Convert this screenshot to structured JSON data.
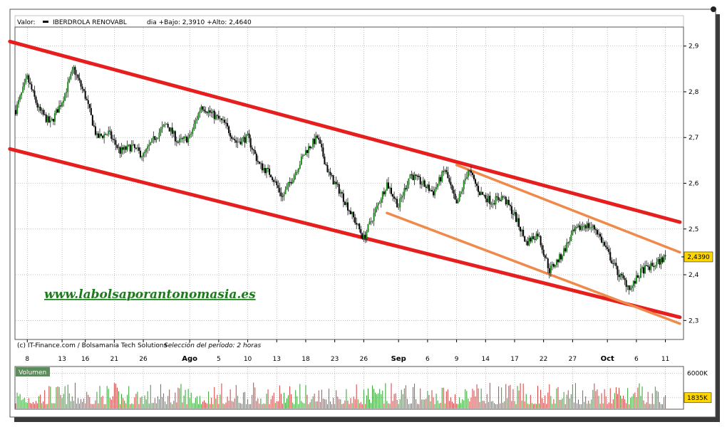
{
  "header": {
    "valor_label": "Valor:",
    "ticker": "IBERDROLA RENOVABL",
    "range_text": "dia +Bajo: 2,3910 +Alto: 2,4640"
  },
  "watermark": "www.labolsaporantonomasia.es",
  "credits": "(c) IT-Finance.com / Bolsamania Tech Solutions",
  "period": "Selección del período: 2 horas",
  "volume_panel": {
    "label": "Volumen",
    "axis": [
      {
        "value": 6000,
        "label": "6000K"
      },
      {
        "value": 1835,
        "label": "1835K",
        "highlight": true
      }
    ]
  },
  "colors": {
    "up": "#1a8c1a",
    "down": "#000000",
    "channel_main": "#e61e1e",
    "channel_secondary": "#f08a4b",
    "price_tag": "#ffd700",
    "volume_up": "#2e9e2e",
    "volume_down": "#d23c3c"
  },
  "chart_data": {
    "type": "candlestick",
    "ylim": [
      2.26,
      2.94
    ],
    "yticks": [
      {
        "value": 2.9,
        "label": "2,9"
      },
      {
        "value": 2.8,
        "label": "2,8"
      },
      {
        "value": 2.7,
        "label": "2,7"
      },
      {
        "value": 2.6,
        "label": "2,6"
      },
      {
        "value": 2.5,
        "label": "2,5"
      },
      {
        "value": 2.4,
        "label": "2,4"
      },
      {
        "value": 2.3,
        "label": "2,3"
      }
    ],
    "last_price": {
      "value": 2.439,
      "label": "2,4390"
    },
    "xlim": [
      0,
      115
    ],
    "xticks": [
      {
        "x": 2,
        "label": "8"
      },
      {
        "x": 8,
        "label": "13"
      },
      {
        "x": 12,
        "label": "16"
      },
      {
        "x": 17,
        "label": "21"
      },
      {
        "x": 22,
        "label": "26"
      },
      {
        "x": 30,
        "label": "Ago",
        "bold": true
      },
      {
        "x": 35,
        "label": "5"
      },
      {
        "x": 40,
        "label": "10"
      },
      {
        "x": 45,
        "label": "13"
      },
      {
        "x": 50,
        "label": "18"
      },
      {
        "x": 55,
        "label": "23"
      },
      {
        "x": 60,
        "label": "26"
      },
      {
        "x": 66,
        "label": "Sep",
        "bold": true
      },
      {
        "x": 71,
        "label": "6"
      },
      {
        "x": 76,
        "label": "9"
      },
      {
        "x": 81,
        "label": "14"
      },
      {
        "x": 86,
        "label": "17"
      },
      {
        "x": 91,
        "label": "22"
      },
      {
        "x": 96,
        "label": "27"
      },
      {
        "x": 102,
        "label": "Oct",
        "bold": true
      },
      {
        "x": 107,
        "label": "6"
      },
      {
        "x": 112,
        "label": "11"
      }
    ],
    "price_points": [
      [
        0,
        2.76
      ],
      [
        2,
        2.83
      ],
      [
        4,
        2.76
      ],
      [
        6,
        2.73
      ],
      [
        8,
        2.78
      ],
      [
        10,
        2.85
      ],
      [
        12,
        2.79
      ],
      [
        14,
        2.7
      ],
      [
        16,
        2.71
      ],
      [
        18,
        2.67
      ],
      [
        20,
        2.68
      ],
      [
        22,
        2.66
      ],
      [
        24,
        2.7
      ],
      [
        26,
        2.73
      ],
      [
        28,
        2.69
      ],
      [
        30,
        2.7
      ],
      [
        32,
        2.77
      ],
      [
        34,
        2.75
      ],
      [
        36,
        2.73
      ],
      [
        38,
        2.69
      ],
      [
        40,
        2.7
      ],
      [
        42,
        2.64
      ],
      [
        44,
        2.62
      ],
      [
        46,
        2.57
      ],
      [
        48,
        2.62
      ],
      [
        50,
        2.67
      ],
      [
        52,
        2.7
      ],
      [
        54,
        2.62
      ],
      [
        56,
        2.58
      ],
      [
        58,
        2.53
      ],
      [
        60,
        2.48
      ],
      [
        62,
        2.54
      ],
      [
        64,
        2.6
      ],
      [
        66,
        2.55
      ],
      [
        68,
        2.62
      ],
      [
        70,
        2.6
      ],
      [
        72,
        2.58
      ],
      [
        74,
        2.63
      ],
      [
        76,
        2.55
      ],
      [
        78,
        2.63
      ],
      [
        80,
        2.58
      ],
      [
        82,
        2.56
      ],
      [
        84,
        2.57
      ],
      [
        86,
        2.53
      ],
      [
        88,
        2.47
      ],
      [
        90,
        2.49
      ],
      [
        92,
        2.41
      ],
      [
        94,
        2.44
      ],
      [
        96,
        2.49
      ],
      [
        98,
        2.51
      ],
      [
        100,
        2.5
      ],
      [
        102,
        2.45
      ],
      [
        104,
        2.4
      ],
      [
        106,
        2.37
      ],
      [
        108,
        2.41
      ],
      [
        110,
        2.42
      ],
      [
        112,
        2.439
      ]
    ],
    "trendlines": [
      {
        "color": "#e61e1e",
        "width": 5,
        "from": [
          -1,
          2.91
        ],
        "to": [
          114.5,
          2.515
        ]
      },
      {
        "color": "#e61e1e",
        "width": 5,
        "from": [
          -1,
          2.675
        ],
        "to": [
          114.5,
          2.307
        ]
      },
      {
        "color": "#f08a4b",
        "width": 3.5,
        "from": [
          76,
          2.64
        ],
        "to": [
          114.5,
          2.449
        ]
      },
      {
        "color": "#f08a4b",
        "width": 3.5,
        "from": [
          64,
          2.535
        ],
        "to": [
          114.5,
          2.293
        ]
      }
    ]
  }
}
